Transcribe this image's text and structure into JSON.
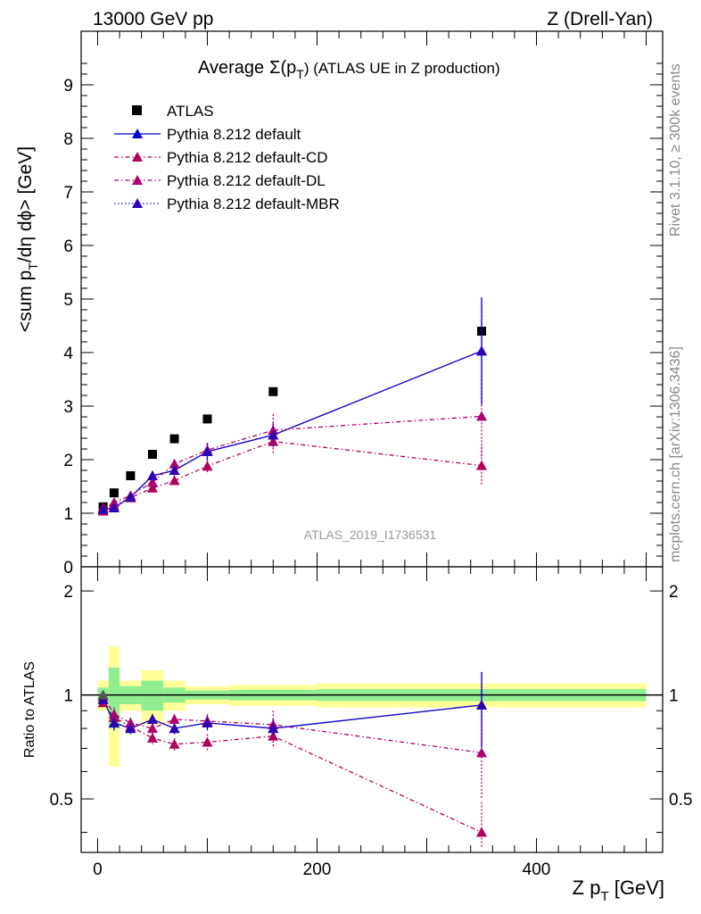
{
  "header": {
    "left": "13000 GeV pp",
    "right": "Z (Drell-Yan)"
  },
  "side_labels": {
    "rivet": "Rivet 3.1.10, ≥ 300k events",
    "mcplots": "mcplots.cern.ch [arXiv:1306.3436]"
  },
  "watermark": "ATLAS_2019_I1736531",
  "colors": {
    "atlas": "#000000",
    "default": "#0000dd",
    "cd": "#b0005a",
    "dl": "#b0006f",
    "mbr": "#2d00b4",
    "band_yellow": "#ffff99",
    "band_green": "#90ee90"
  },
  "chart_data": [
    {
      "type": "scatter",
      "title_prefix": "Average",
      "title_sym": "Σ(p",
      "title_sub": "T",
      "title_suffix": ") (ATLAS UE in Z production)",
      "ylabel_main": "<sum p",
      "ylabel_sub": "T",
      "ylabel_tail": "/dη dϕ> [GeV]",
      "xlim": [
        -15,
        515
      ],
      "ylim": [
        0,
        10
      ],
      "yticks": [
        "0",
        "1",
        "2",
        "3",
        "4",
        "5",
        "6",
        "7",
        "8",
        "9"
      ],
      "legend_position": "top-left",
      "series": [
        {
          "name": "ATLAS",
          "style": "marker-square",
          "x": [
            5,
            15,
            30,
            50,
            70,
            100,
            160,
            350
          ],
          "y": [
            1.12,
            1.38,
            1.7,
            2.1,
            2.39,
            2.76,
            3.27,
            4.4
          ]
        },
        {
          "name": "Pythia 8.212 default",
          "style": "solid",
          "x": [
            5,
            15,
            30,
            50,
            70,
            100,
            160,
            350
          ],
          "y": [
            1.07,
            1.1,
            1.3,
            1.7,
            1.8,
            2.15,
            2.46,
            4.03
          ],
          "err": [
            0.04,
            0.05,
            0.06,
            0.08,
            0.09,
            0.16,
            0.22,
            1.0
          ]
        },
        {
          "name": "Pythia 8.212 default-CD",
          "style": "dashdot",
          "x": [
            5,
            15,
            30,
            50,
            70,
            100,
            160,
            350
          ],
          "y": [
            1.04,
            1.14,
            1.29,
            1.47,
            1.61,
            1.88,
            2.34,
            1.89
          ],
          "err": [
            0.04,
            0.05,
            0.06,
            0.08,
            0.09,
            0.12,
            0.22,
            0.35
          ]
        },
        {
          "name": "Pythia 8.212 default-DL",
          "style": "dashdot",
          "x": [
            5,
            15,
            30,
            50,
            70,
            100,
            160,
            350
          ],
          "y": [
            1.1,
            1.2,
            1.33,
            1.58,
            1.92,
            2.18,
            2.55,
            2.81
          ],
          "err": [
            0.04,
            0.05,
            0.06,
            0.08,
            0.09,
            0.13,
            0.3,
            0.75
          ]
        },
        {
          "name": "Pythia 8.212 default-MBR",
          "style": "dotted",
          "x": [
            5,
            15,
            30,
            50,
            70,
            100,
            160,
            350
          ],
          "y": [
            1.07,
            1.1,
            1.3,
            1.7,
            1.8,
            2.15,
            2.46,
            4.03
          ],
          "err": [
            0.04,
            0.05,
            0.06,
            0.08,
            0.09,
            0.16,
            0.22,
            1.0
          ]
        }
      ]
    },
    {
      "type": "scatter",
      "ylabel": "Ratio to ATLAS",
      "xlabel_main": "Z p",
      "xlabel_sub": "T",
      "xlabel_tail": " [GeV]",
      "xlim": [
        -15,
        515
      ],
      "ylim": [
        0.35,
        2.35
      ],
      "yticks": [
        "0.5",
        "1",
        "2"
      ],
      "xticks": [
        "0",
        "200",
        "400"
      ],
      "bands": {
        "edges": [
          0,
          10,
          20,
          40,
          60,
          80,
          120,
          200,
          500
        ],
        "yellow_half": [
          0.1,
          0.38,
          0.1,
          0.18,
          0.1,
          0.06,
          0.07,
          0.08
        ],
        "green_half": [
          0.05,
          0.2,
          0.06,
          0.1,
          0.05,
          0.03,
          0.035,
          0.04
        ]
      },
      "series": [
        {
          "name": "Pythia 8.212 default",
          "x": [
            5,
            15,
            30,
            50,
            70,
            100,
            160,
            350
          ],
          "y": [
            0.97,
            0.83,
            0.8,
            0.85,
            0.8,
            0.83,
            0.8,
            0.935
          ],
          "err": [
            0.03,
            0.04,
            0.03,
            0.03,
            0.03,
            0.04,
            0.05,
            0.23
          ]
        },
        {
          "name": "Pythia 8.212 default-CD",
          "x": [
            5,
            15,
            30,
            50,
            70,
            100,
            160,
            350
          ],
          "y": [
            0.95,
            0.86,
            0.81,
            0.75,
            0.72,
            0.73,
            0.76,
            0.4
          ],
          "err": [
            0.03,
            0.04,
            0.03,
            0.03,
            0.03,
            0.04,
            0.05,
            0.09
          ]
        },
        {
          "name": "Pythia 8.212 default-DL",
          "x": [
            5,
            15,
            30,
            50,
            70,
            100,
            160,
            350
          ],
          "y": [
            0.99,
            0.88,
            0.83,
            0.8,
            0.85,
            0.84,
            0.82,
            0.68
          ],
          "err": [
            0.03,
            0.04,
            0.03,
            0.03,
            0.03,
            0.04,
            0.08,
            0.18
          ]
        },
        {
          "name": "Pythia 8.212 default-MBR",
          "x": [
            5,
            15,
            30,
            50,
            70,
            100,
            160,
            350
          ],
          "y": [
            0.97,
            0.83,
            0.8,
            0.85,
            0.8,
            0.83,
            0.8,
            0.935
          ],
          "err": [
            0.03,
            0.04,
            0.03,
            0.03,
            0.03,
            0.04,
            0.05,
            0.23
          ]
        }
      ]
    }
  ]
}
